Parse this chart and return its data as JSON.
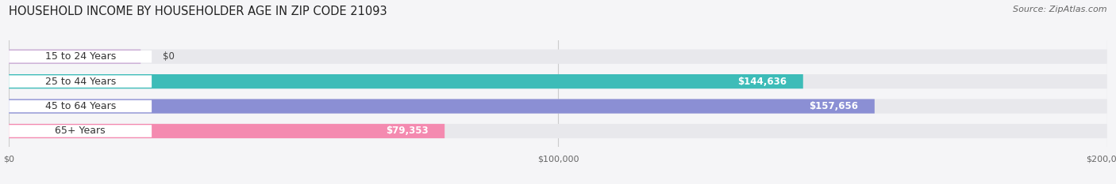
{
  "title": "HOUSEHOLD INCOME BY HOUSEHOLDER AGE IN ZIP CODE 21093",
  "source": "Source: ZipAtlas.com",
  "categories": [
    "15 to 24 Years",
    "25 to 44 Years",
    "45 to 64 Years",
    "65+ Years"
  ],
  "values": [
    0,
    144636,
    157656,
    79353
  ],
  "bar_colors": [
    "#c9a8d4",
    "#3dbcb8",
    "#8b8fd4",
    "#f48ab0"
  ],
  "bar_bg_color": "#e8e8ec",
  "value_labels": [
    "$0",
    "$144,636",
    "$157,656",
    "$79,353"
  ],
  "xmax": 200000,
  "xtick_labels": [
    "$0",
    "$100,000",
    "$200,000"
  ],
  "title_fontsize": 10.5,
  "source_fontsize": 8,
  "label_fontsize": 9,
  "value_fontsize": 8.5,
  "background_color": "#f5f5f7"
}
